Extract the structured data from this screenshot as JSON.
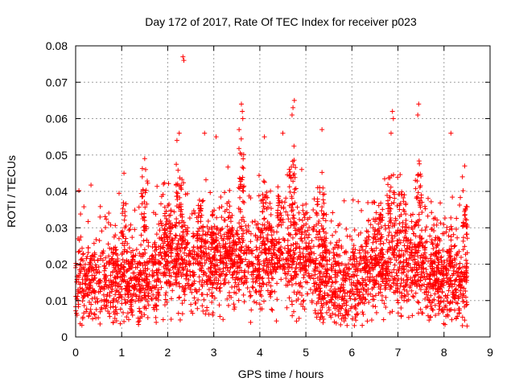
{
  "chart_data": {
    "type": "scatter",
    "title": "Day 172 of 2017, Rate Of TEC Index for receiver p023",
    "xlabel": "GPS time / hours",
    "ylabel": "ROTI / TECUs",
    "xlim": [
      0,
      9
    ],
    "ylim": [
      0,
      0.08
    ],
    "xticks": [
      "0",
      "1",
      "2",
      "3",
      "4",
      "5",
      "6",
      "7",
      "8",
      "9"
    ],
    "yticks": [
      "0",
      "0.01",
      "0.02",
      "0.03",
      "0.04",
      "0.05",
      "0.06",
      "0.07",
      "0.08"
    ],
    "grid": true,
    "marker": "plus",
    "color": "#ff0000",
    "series": [
      {
        "name": "p023",
        "x_range": [
          0,
          8.5
        ],
        "typical_band": [
          0.005,
          0.025
        ],
        "notable_points": [
          {
            "x": 2.33,
            "y": 0.077
          },
          {
            "x": 2.35,
            "y": 0.076
          },
          {
            "x": 3.6,
            "y": 0.064
          },
          {
            "x": 3.62,
            "y": 0.062
          },
          {
            "x": 3.63,
            "y": 0.06
          },
          {
            "x": 4.75,
            "y": 0.065
          },
          {
            "x": 4.72,
            "y": 0.063
          },
          {
            "x": 4.7,
            "y": 0.061
          },
          {
            "x": 6.88,
            "y": 0.062
          },
          {
            "x": 6.9,
            "y": 0.06
          },
          {
            "x": 6.85,
            "y": 0.056
          },
          {
            "x": 7.45,
            "y": 0.064
          },
          {
            "x": 7.43,
            "y": 0.061
          },
          {
            "x": 8.15,
            "y": 0.056
          },
          {
            "x": 5.35,
            "y": 0.057
          },
          {
            "x": 2.25,
            "y": 0.056
          },
          {
            "x": 2.2,
            "y": 0.054
          },
          {
            "x": 2.8,
            "y": 0.056
          },
          {
            "x": 3.55,
            "y": 0.057
          },
          {
            "x": 3.05,
            "y": 0.055
          },
          {
            "x": 4.1,
            "y": 0.055
          },
          {
            "x": 4.5,
            "y": 0.056
          },
          {
            "x": 1.5,
            "y": 0.049
          },
          {
            "x": 1.52,
            "y": 0.046
          },
          {
            "x": 1.05,
            "y": 0.045
          },
          {
            "x": 8.45,
            "y": 0.047
          },
          {
            "x": 8.4,
            "y": 0.044
          },
          {
            "x": 0.05,
            "y": 0.027
          },
          {
            "x": 1.75,
            "y": 0.004
          },
          {
            "x": 8.5,
            "y": 0.003
          },
          {
            "x": 3.8,
            "y": 0.004
          }
        ]
      }
    ]
  }
}
